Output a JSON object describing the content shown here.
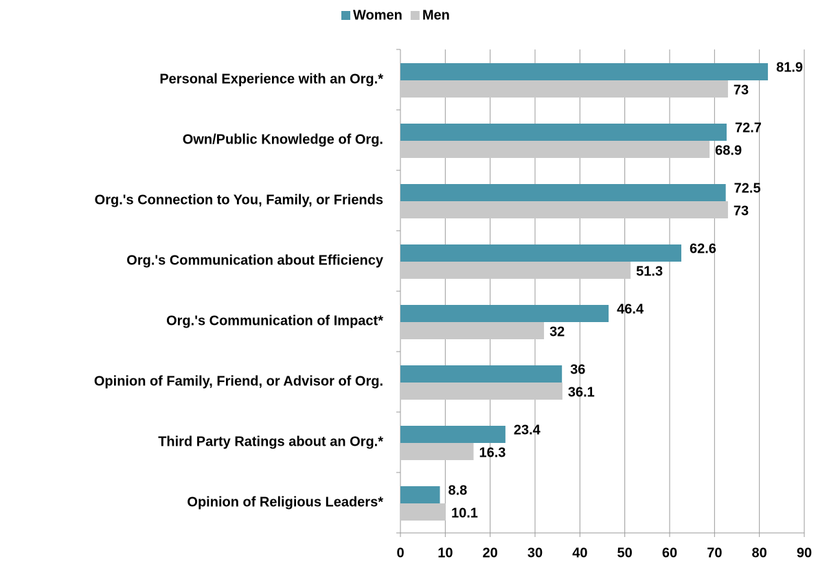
{
  "chart_data": {
    "type": "bar",
    "orientation": "horizontal",
    "categories": [
      "Personal Experience with an Org.*",
      "Own/Public Knowledge of Org.",
      "Org.'s Connection to You, Family, or Friends",
      "Org.'s Communication about Efficiency",
      "Org.'s Communication of Impact*",
      "Opinion of Family, Friend, or Advisor of Org.",
      "Third Party Ratings about an Org.*",
      "Opinion of Religious Leaders*"
    ],
    "series": [
      {
        "name": "Women",
        "color": "#4a96ab",
        "values": [
          81.9,
          72.7,
          72.5,
          62.6,
          46.4,
          36,
          23.4,
          8.8
        ]
      },
      {
        "name": "Men",
        "color": "#c8c8c8",
        "values": [
          73,
          68.9,
          73,
          51.3,
          32,
          36.1,
          16.3,
          10.1
        ]
      }
    ],
    "xlim": [
      0,
      90
    ],
    "xticks": [
      0,
      10,
      20,
      30,
      40,
      50,
      60,
      70,
      80,
      90
    ],
    "grid": true,
    "legend": "top"
  }
}
